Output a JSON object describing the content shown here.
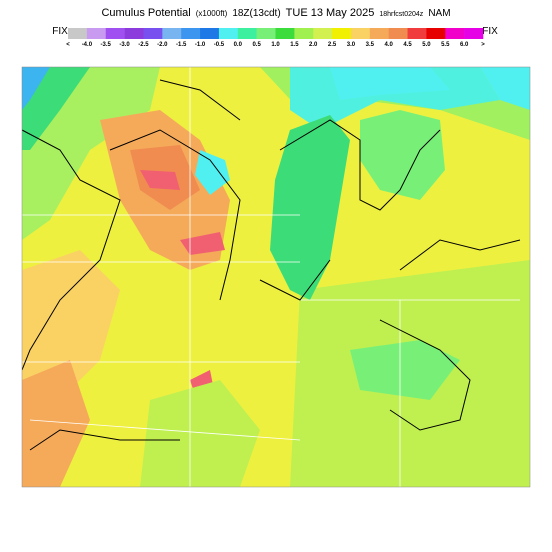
{
  "header": {
    "title_parts": [
      "Cumulus Potential",
      "(x1000ft)",
      "18Z(13cdt)",
      "TUE 13 May 2025",
      "18hrfcst0204z",
      "NAM"
    ]
  },
  "legend": {
    "left_label": "FIX",
    "right_label": "FIX",
    "labels": [
      "<",
      "-4.0",
      "-3.5",
      "-3.0",
      "-2.5",
      "-2.0",
      "-1.5",
      "-1.0",
      "-0.5",
      "0.0",
      "0.5",
      "1.0",
      "1.5",
      "2.0",
      "2.5",
      "3.0",
      "3.5",
      "4.0",
      "4.5",
      "5.0",
      "5.5",
      "6.0",
      ">"
    ],
    "colors": [
      "#c8c8c8",
      "#c89bf0",
      "#a050f0",
      "#8c3cdc",
      "#7850f0",
      "#78b4f0",
      "#3c96f0",
      "#1e78e6",
      "#50f0f0",
      "#3cf0a0",
      "#78f078",
      "#3cdc3c",
      "#a0f050",
      "#d2f050",
      "#f0f000",
      "#fad264",
      "#f5aa5a",
      "#f08c50",
      "#f03c3c",
      "#e60000",
      "#f000c8",
      "#e600e6"
    ]
  }
}
